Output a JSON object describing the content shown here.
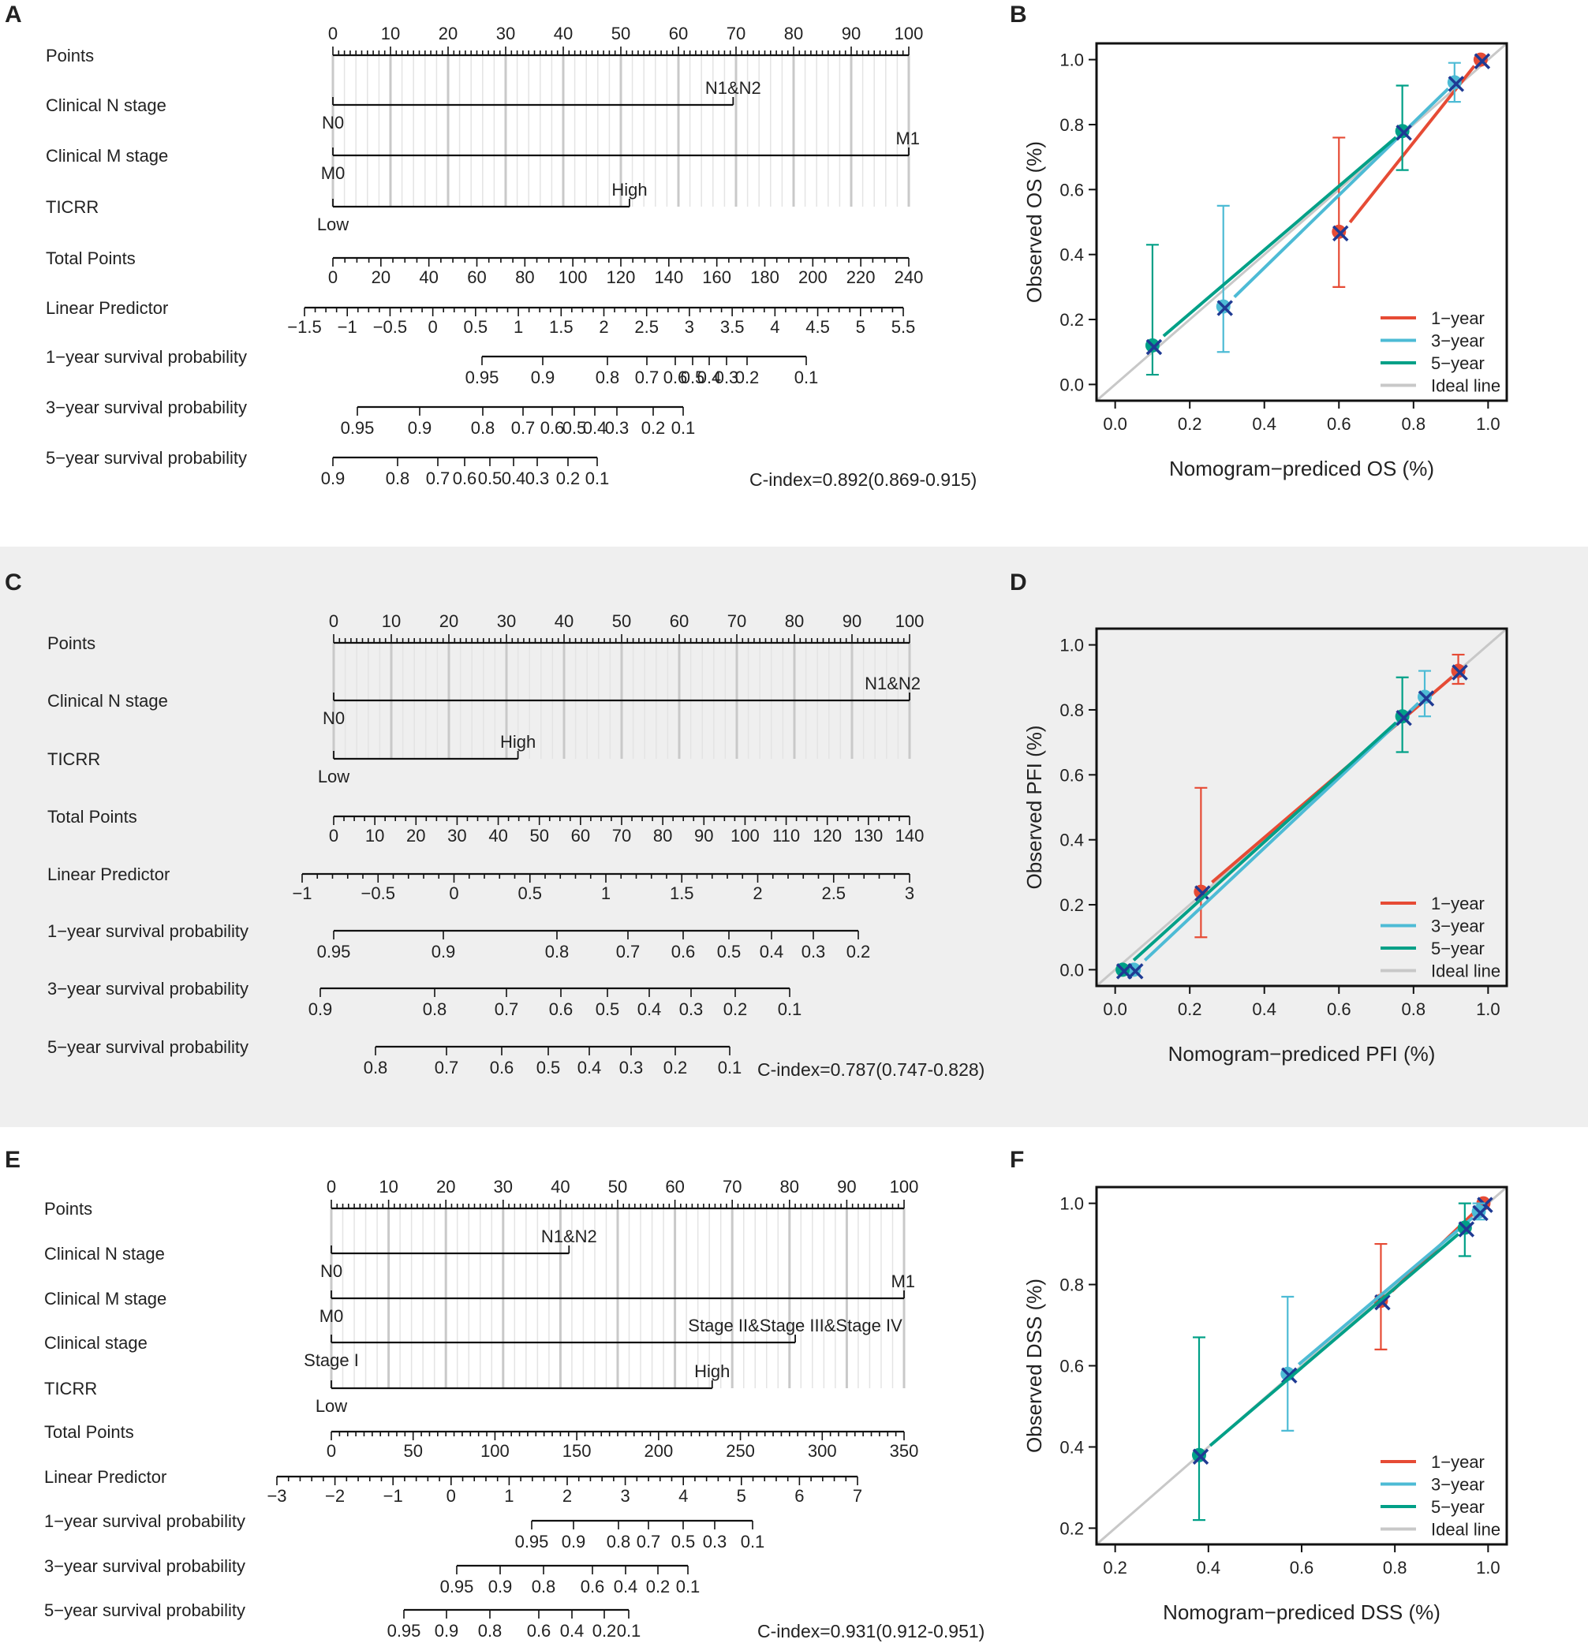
{
  "nomograms": [
    {
      "panel": "A",
      "rows": [
        {
          "name": "Points",
          "type": "axis",
          "ticks": [
            "0",
            "10",
            "20",
            "30",
            "40",
            "50",
            "60",
            "70",
            "80",
            "90",
            "100"
          ]
        },
        {
          "name": "Clinical N stage",
          "type": "factor",
          "levels": [
            {
              "label": "N0",
              "points": 0
            },
            {
              "label": "N1&N2",
              "points": 69.5
            }
          ]
        },
        {
          "name": "Clinical M stage",
          "type": "factor",
          "levels": [
            {
              "label": "M0",
              "points": 0
            },
            {
              "label": "M1",
              "points": 100
            }
          ]
        },
        {
          "name": "TICRR",
          "type": "factor",
          "levels": [
            {
              "label": "Low",
              "points": 0
            },
            {
              "label": "High",
              "points": 51.5
            }
          ]
        },
        {
          "name": "Total Points",
          "type": "axis",
          "ticks": [
            "0",
            "20",
            "40",
            "60",
            "80",
            "100",
            "120",
            "140",
            "160",
            "180",
            "200",
            "220",
            "240"
          ]
        },
        {
          "name": "Linear Predictor",
          "type": "axis",
          "ticks": [
            "−1.5",
            "−1",
            "−0.5",
            "0",
            "0.5",
            "1",
            "1.5",
            "2",
            "2.5",
            "3",
            "3.5",
            "4",
            "4.5",
            "5",
            "5.5"
          ]
        },
        {
          "name": "1−year survival probability",
          "type": "prob",
          "ticks": [
            "0.95",
            "0.9",
            "0.8",
            "0.7",
            "0.6",
            "0.5",
            "0.4",
            "0.3",
            "0.2",
            "0.1"
          ]
        },
        {
          "name": "3−year survival probability",
          "type": "prob",
          "ticks": [
            "0.95",
            "0.9",
            "0.8",
            "0.7",
            "0.6",
            "0.5",
            "0.4",
            "0.3",
            "0.2",
            "0.1"
          ]
        },
        {
          "name": "5−year survival probability",
          "type": "prob",
          "ticks": [
            "0.9",
            "0.8",
            "0.7",
            "0.6",
            "0.5",
            "0.4",
            "0.3",
            "0.2",
            "0.1"
          ]
        }
      ],
      "cindex": "C-index=0.892(0.869-0.915)"
    },
    {
      "panel": "C",
      "rows": [
        {
          "name": "Points",
          "type": "axis",
          "ticks": [
            "0",
            "10",
            "20",
            "30",
            "40",
            "50",
            "60",
            "70",
            "80",
            "90",
            "100"
          ]
        },
        {
          "name": "Clinical N stage",
          "type": "factor",
          "levels": [
            {
              "label": "N0",
              "points": 0
            },
            {
              "label": "N1&N2",
              "points": 100
            }
          ]
        },
        {
          "name": "TICRR",
          "type": "factor",
          "levels": [
            {
              "label": "Low",
              "points": 0
            },
            {
              "label": "High",
              "points": 32
            }
          ]
        },
        {
          "name": "Total Points",
          "type": "axis",
          "ticks": [
            "0",
            "10",
            "20",
            "30",
            "40",
            "50",
            "60",
            "70",
            "80",
            "90",
            "100",
            "110",
            "120",
            "130",
            "140"
          ]
        },
        {
          "name": "Linear Predictor",
          "type": "axis",
          "ticks": [
            "−1",
            "−0.5",
            "0",
            "0.5",
            "1",
            "1.5",
            "2",
            "2.5",
            "3"
          ]
        },
        {
          "name": "1−year survival probability",
          "type": "prob",
          "ticks": [
            "0.95",
            "0.9",
            "0.8",
            "0.7",
            "0.6",
            "0.5",
            "0.4",
            "0.3",
            "0.2"
          ]
        },
        {
          "name": "3−year survival probability",
          "type": "prob",
          "ticks": [
            "0.9",
            "0.8",
            "0.7",
            "0.6",
            "0.5",
            "0.4",
            "0.3",
            "0.2",
            "0.1"
          ]
        },
        {
          "name": "5−year survival probability",
          "type": "prob",
          "ticks": [
            "0.8",
            "0.7",
            "0.6",
            "0.5",
            "0.4",
            "0.3",
            "0.2",
            "0.1"
          ]
        }
      ],
      "cindex": "C-index=0.787(0.747-0.828)"
    },
    {
      "panel": "E",
      "rows": [
        {
          "name": "Points",
          "type": "axis",
          "ticks": [
            "0",
            "10",
            "20",
            "30",
            "40",
            "50",
            "60",
            "70",
            "80",
            "90",
            "100"
          ]
        },
        {
          "name": "Clinical N stage",
          "type": "factor",
          "levels": [
            {
              "label": "N0",
              "points": 0
            },
            {
              "label": "N1&N2",
              "points": 41.5
            }
          ]
        },
        {
          "name": "Clinical M stage",
          "type": "factor",
          "levels": [
            {
              "label": "M0",
              "points": 0
            },
            {
              "label": "M1",
              "points": 100
            }
          ]
        },
        {
          "name": "Clinical stage",
          "type": "factor",
          "levels": [
            {
              "label": "Stage I",
              "points": 0
            },
            {
              "label": "Stage II&Stage III&Stage IV",
              "points": 81
            }
          ]
        },
        {
          "name": "TICRR",
          "type": "factor",
          "levels": [
            {
              "label": "Low",
              "points": 0
            },
            {
              "label": "High",
              "points": 66.5
            }
          ]
        },
        {
          "name": "Total Points",
          "type": "axis",
          "ticks": [
            "0",
            "50",
            "100",
            "150",
            "200",
            "250",
            "300",
            "350"
          ]
        },
        {
          "name": "Linear Predictor",
          "type": "axis",
          "ticks": [
            "−3",
            "−2",
            "−1",
            "0",
            "1",
            "2",
            "3",
            "4",
            "5",
            "6",
            "7"
          ]
        },
        {
          "name": "1−year survival probability",
          "type": "prob",
          "ticks": [
            "0.95",
            "0.9",
            "0.8",
            "0.7",
            "0.5",
            "0.3",
            "0.1"
          ]
        },
        {
          "name": "3−year survival probability",
          "type": "prob",
          "ticks": [
            "0.95",
            "0.9",
            "0.8",
            "0.6",
            "0.4",
            "0.2",
            "0.1"
          ]
        },
        {
          "name": "5−year survival probability",
          "type": "prob",
          "ticks": [
            "0.95",
            "0.9",
            "0.8",
            "0.6",
            "0.4",
            "0.2",
            "0.1"
          ]
        }
      ],
      "cindex": "C-index=0.931(0.912-0.951)"
    }
  ],
  "chart_data": [
    {
      "panel": "B",
      "type": "line",
      "title": "",
      "xlabel": "Nomogram−prediced OS (%)",
      "ylabel": "Observed OS (%)",
      "xlim": [
        0,
        1
      ],
      "ylim": [
        0,
        1
      ],
      "xticks": [
        "0.0",
        "0.2",
        "0.4",
        "0.6",
        "0.8",
        "1.0"
      ],
      "yticks": [
        "0.0",
        "0.2",
        "0.4",
        "0.6",
        "0.8",
        "1.0"
      ],
      "series": [
        {
          "name": "1−year",
          "color": "#E64B35",
          "points": [
            {
              "x": 0.6,
              "y": 0.47,
              "lo": 0.3,
              "hi": 0.76
            },
            {
              "x": 0.98,
              "y": 1.0,
              "lo": 1.0,
              "hi": 1.0
            }
          ]
        },
        {
          "name": "3−year",
          "color": "#4DBBD5",
          "points": [
            {
              "x": 0.29,
              "y": 0.24,
              "lo": 0.1,
              "hi": 0.55
            },
            {
              "x": 0.91,
              "y": 0.93,
              "lo": 0.87,
              "hi": 0.99
            }
          ]
        },
        {
          "name": "5−year",
          "color": "#00A087",
          "points": [
            {
              "x": 0.1,
              "y": 0.12,
              "lo": 0.03,
              "hi": 0.43
            },
            {
              "x": 0.77,
              "y": 0.78,
              "lo": 0.66,
              "hi": 0.92
            }
          ]
        }
      ],
      "legend": [
        "1−year",
        "3−year",
        "5−year",
        "Ideal line"
      ]
    },
    {
      "panel": "D",
      "type": "line",
      "title": "",
      "xlabel": "Nomogram−prediced PFI (%)",
      "ylabel": "Observed PFI (%)",
      "xlim": [
        0,
        1
      ],
      "ylim": [
        0,
        1
      ],
      "xticks": [
        "0.0",
        "0.2",
        "0.4",
        "0.6",
        "0.8",
        "1.0"
      ],
      "yticks": [
        "0.0",
        "0.2",
        "0.4",
        "0.6",
        "0.8",
        "1.0"
      ],
      "series": [
        {
          "name": "1−year",
          "color": "#E64B35",
          "points": [
            {
              "x": 0.23,
              "y": 0.24,
              "lo": 0.1,
              "hi": 0.56
            },
            {
              "x": 0.92,
              "y": 0.92,
              "lo": 0.88,
              "hi": 0.97
            }
          ]
        },
        {
          "name": "3−year",
          "color": "#4DBBD5",
          "points": [
            {
              "x": 0.05,
              "y": 0.0,
              "lo": 0.0,
              "hi": 0.0
            },
            {
              "x": 0.83,
              "y": 0.84,
              "lo": 0.78,
              "hi": 0.92
            }
          ]
        },
        {
          "name": "5−year",
          "color": "#00A087",
          "points": [
            {
              "x": 0.02,
              "y": 0.0,
              "lo": 0.0,
              "hi": 0.0
            },
            {
              "x": 0.77,
              "y": 0.78,
              "lo": 0.67,
              "hi": 0.9
            }
          ]
        }
      ],
      "legend": [
        "1−year",
        "3−year",
        "5−year",
        "Ideal line"
      ]
    },
    {
      "panel": "F",
      "type": "line",
      "title": "",
      "xlabel": "Nomogram−prediced DSS (%)",
      "ylabel": "Observed DSS (%)",
      "xlim": [
        0.2,
        1
      ],
      "ylim": [
        0.2,
        1
      ],
      "xticks": [
        "0.2",
        "0.4",
        "0.6",
        "0.8",
        "1.0"
      ],
      "yticks": [
        "0.2",
        "0.4",
        "0.6",
        "0.8",
        "1.0"
      ],
      "series": [
        {
          "name": "1−year",
          "color": "#E64B35",
          "points": [
            {
              "x": 0.77,
              "y": 0.76,
              "lo": 0.64,
              "hi": 0.9
            },
            {
              "x": 0.99,
              "y": 1.0,
              "lo": 1.0,
              "hi": 1.0
            }
          ]
        },
        {
          "name": "3−year",
          "color": "#4DBBD5",
          "points": [
            {
              "x": 0.57,
              "y": 0.58,
              "lo": 0.44,
              "hi": 0.77
            },
            {
              "x": 0.98,
              "y": 0.98,
              "lo": 0.96,
              "hi": 1.0
            }
          ]
        },
        {
          "name": "5−year",
          "color": "#00A087",
          "points": [
            {
              "x": 0.38,
              "y": 0.38,
              "lo": 0.22,
              "hi": 0.67
            },
            {
              "x": 0.95,
              "y": 0.94,
              "lo": 0.87,
              "hi": 1.0
            }
          ]
        }
      ],
      "legend": [
        "1−year",
        "3−year",
        "5−year",
        "Ideal line"
      ]
    }
  ],
  "colors": {
    "ideal": "#C8C8C8",
    "cross": "#1F3A93",
    "panel_bg": "#EFEFEF"
  }
}
